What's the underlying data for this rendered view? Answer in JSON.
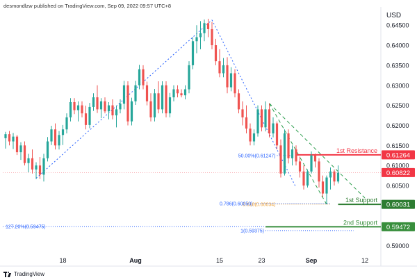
{
  "header": {
    "text": "desmondlzw published on TradingView.com, Sep 09, 2022 09:57 UTC+8"
  },
  "footer": {
    "brand": "TradingView"
  },
  "chart_data": {
    "type": "candlestick",
    "currency_label": "USD",
    "ylim": [
      0.5875,
      0.6485
    ],
    "y_ticks": [
      0.645,
      0.64,
      0.635,
      0.63,
      0.625,
      0.62,
      0.615,
      0.61,
      0.605,
      0.6,
      0.595,
      0.59
    ],
    "y_tick_labels": [
      "0.64500",
      "0.64000",
      "0.63500",
      "0.63000",
      "0.62500",
      "0.62000",
      "0.61500",
      "0.61000",
      "0.60500",
      "0.60000",
      "0.59500",
      "0.59000"
    ],
    "x_tick_labels": [
      {
        "label": "18",
        "i": 15
      },
      {
        "label": "Aug",
        "i": 34
      },
      {
        "label": "15",
        "i": 56
      },
      {
        "label": "23",
        "i": 67
      },
      {
        "label": "Sep",
        "i": 80
      },
      {
        "label": "12",
        "i": 94
      }
    ],
    "candles": [
      [
        0.6168,
        0.6184,
        0.6142,
        0.6178
      ],
      [
        0.6178,
        0.6186,
        0.615,
        0.616
      ],
      [
        0.616,
        0.6181,
        0.6141,
        0.6172
      ],
      [
        0.6172,
        0.6176,
        0.6126,
        0.6133
      ],
      [
        0.6133,
        0.6158,
        0.6114,
        0.615
      ],
      [
        0.615,
        0.616,
        0.61,
        0.6106
      ],
      [
        0.6106,
        0.6129,
        0.6083,
        0.6118
      ],
      [
        0.6118,
        0.614,
        0.608,
        0.609
      ],
      [
        0.609,
        0.6108,
        0.6066,
        0.61
      ],
      [
        0.61,
        0.6121,
        0.6066,
        0.6077
      ],
      [
        0.6077,
        0.6129,
        0.606,
        0.6118
      ],
      [
        0.6118,
        0.6171,
        0.611,
        0.616
      ],
      [
        0.616,
        0.6199,
        0.6151,
        0.619
      ],
      [
        0.619,
        0.6205,
        0.614,
        0.615
      ],
      [
        0.615,
        0.6186,
        0.614,
        0.6176
      ],
      [
        0.6176,
        0.6201,
        0.6151,
        0.619
      ],
      [
        0.619,
        0.623,
        0.618,
        0.622
      ],
      [
        0.622,
        0.6268,
        0.621,
        0.6258
      ],
      [
        0.6258,
        0.6268,
        0.6228,
        0.6238
      ],
      [
        0.6238,
        0.626,
        0.621,
        0.625
      ],
      [
        0.625,
        0.626,
        0.622,
        0.623
      ],
      [
        0.623,
        0.6249,
        0.619,
        0.6201
      ],
      [
        0.6201,
        0.6256,
        0.6193,
        0.6246
      ],
      [
        0.6246,
        0.628,
        0.6236,
        0.627
      ],
      [
        0.627,
        0.63,
        0.6231,
        0.624
      ],
      [
        0.624,
        0.6268,
        0.6218,
        0.626
      ],
      [
        0.626,
        0.627,
        0.623,
        0.6235
      ],
      [
        0.6235,
        0.6258,
        0.6215,
        0.625
      ],
      [
        0.625,
        0.6265,
        0.6215,
        0.6225
      ],
      [
        0.6225,
        0.6249,
        0.6195,
        0.624
      ],
      [
        0.624,
        0.6265,
        0.623,
        0.6254
      ],
      [
        0.6254,
        0.6311,
        0.624,
        0.63
      ],
      [
        0.63,
        0.631,
        0.62,
        0.621
      ],
      [
        0.621,
        0.6269,
        0.62,
        0.626
      ],
      [
        0.626,
        0.6311,
        0.6251,
        0.63
      ],
      [
        0.63,
        0.6351,
        0.629,
        0.634
      ],
      [
        0.634,
        0.635,
        0.629,
        0.63
      ],
      [
        0.63,
        0.6309,
        0.625,
        0.626
      ],
      [
        0.626,
        0.628,
        0.621,
        0.622
      ],
      [
        0.622,
        0.6291,
        0.621,
        0.628
      ],
      [
        0.628,
        0.631,
        0.623,
        0.624
      ],
      [
        0.624,
        0.631,
        0.623,
        0.63
      ],
      [
        0.63,
        0.631,
        0.622,
        0.623
      ],
      [
        0.623,
        0.6281,
        0.622,
        0.627
      ],
      [
        0.627,
        0.63,
        0.626,
        0.629
      ],
      [
        0.629,
        0.63,
        0.627,
        0.628
      ],
      [
        0.628,
        0.629,
        0.627,
        0.6275
      ],
      [
        0.6275,
        0.63,
        0.6265,
        0.629
      ],
      [
        0.629,
        0.636,
        0.628,
        0.635
      ],
      [
        0.635,
        0.642,
        0.634,
        0.641
      ],
      [
        0.641,
        0.645,
        0.638,
        0.642
      ],
      [
        0.642,
        0.646,
        0.639,
        0.643
      ],
      [
        0.643,
        0.6464,
        0.641,
        0.6455
      ],
      [
        0.6455,
        0.6466,
        0.642,
        0.644
      ],
      [
        0.644,
        0.6458,
        0.639,
        0.64
      ],
      [
        0.64,
        0.6416,
        0.635,
        0.636
      ],
      [
        0.636,
        0.639,
        0.632,
        0.633
      ],
      [
        0.633,
        0.6368,
        0.632,
        0.635
      ],
      [
        0.635,
        0.637,
        0.628,
        0.6295
      ],
      [
        0.6295,
        0.6345,
        0.6285,
        0.633
      ],
      [
        0.633,
        0.634,
        0.627,
        0.628
      ],
      [
        0.628,
        0.629,
        0.623,
        0.624
      ],
      [
        0.624,
        0.626,
        0.62,
        0.622
      ],
      [
        0.622,
        0.625,
        0.618,
        0.6192
      ],
      [
        0.6192,
        0.6205,
        0.615,
        0.616
      ],
      [
        0.616,
        0.619,
        0.615,
        0.618
      ],
      [
        0.618,
        0.625,
        0.6172,
        0.624
      ],
      [
        0.624,
        0.625,
        0.6185,
        0.6195
      ],
      [
        0.6195,
        0.626,
        0.6185,
        0.624
      ],
      [
        0.624,
        0.6255,
        0.617,
        0.618
      ],
      [
        0.618,
        0.622,
        0.617,
        0.6205
      ],
      [
        0.6205,
        0.621,
        0.614,
        0.615
      ],
      [
        0.615,
        0.6165,
        0.607,
        0.608
      ],
      [
        0.608,
        0.619,
        0.6075,
        0.618
      ],
      [
        0.618,
        0.619,
        0.6105,
        0.6118
      ],
      [
        0.6118,
        0.615,
        0.61,
        0.614
      ],
      [
        0.614,
        0.615,
        0.61,
        0.611
      ],
      [
        0.611,
        0.6122,
        0.607,
        0.6085
      ],
      [
        0.6085,
        0.61,
        0.604,
        0.605
      ],
      [
        0.605,
        0.609,
        0.6045,
        0.6085
      ],
      [
        0.6085,
        0.6135,
        0.608,
        0.6125
      ],
      [
        0.6125,
        0.613,
        0.6095,
        0.611
      ],
      [
        0.611,
        0.6118,
        0.6045,
        0.606
      ],
      [
        0.606,
        0.6075,
        0.6022,
        0.603
      ],
      [
        0.603,
        0.6075,
        0.6004,
        0.607
      ],
      [
        0.607,
        0.6095,
        0.604,
        0.6085
      ],
      [
        0.6085,
        0.609,
        0.605,
        0.606
      ],
      [
        0.606,
        0.61,
        0.6055,
        0.6082
      ]
    ],
    "fib_lines": [
      {
        "label": "50.00%(0.61247)",
        "value": 0.61247,
        "color": "#2962ff",
        "i0": 71,
        "i1": 75
      },
      {
        "label": "0.618(0.60034)",
        "value": 0.60034,
        "color": "#f0a030",
        "i0": 71,
        "i1": 85
      },
      {
        "label": "0.786(0.60050)",
        "value": 0.6005,
        "color": "#2962ff",
        "i0": 65,
        "i1": 85
      },
      {
        "label": "127.20%(0.59475)",
        "value": 0.59475,
        "color": "#2962ff",
        "i0": -4,
        "i1": 91
      },
      {
        "label": "1(0.59375)",
        "value": 0.59375,
        "color": "#2962ff",
        "i0": 68,
        "i1": 91
      }
    ],
    "levels": [
      {
        "label": "1st Resistance",
        "value": 0.61264,
        "price_label": "0.61264",
        "color": "#f23645"
      },
      {
        "label": "1st Support",
        "value": 0.60031,
        "price_label": "0.60031",
        "color": "#2e7d32"
      },
      {
        "label": "2nd Support",
        "value": 0.59472,
        "price_label": "0.59472",
        "color": "#388e3c"
      }
    ],
    "last_price": {
      "value": 0.60822,
      "price_label": "0.60822",
      "color": "#f23645"
    },
    "trend_lines": [
      {
        "from": [
          8,
          0.6068
        ],
        "to": [
          54,
          0.6463
        ],
        "color": "#2962ff"
      },
      {
        "from": [
          54,
          0.6463
        ],
        "to": [
          76,
          0.6045
        ],
        "color": "#2962ff"
      },
      {
        "from": [
          69,
          0.6255
        ],
        "to": [
          94,
          0.6019
        ],
        "color": "#2e9e4e"
      },
      {
        "from": [
          69,
          0.6255
        ],
        "to": [
          84,
          0.6003
        ],
        "color": "#2e9e4e"
      }
    ],
    "colors": {
      "up": "#26a69a",
      "down": "#ef5350"
    }
  }
}
